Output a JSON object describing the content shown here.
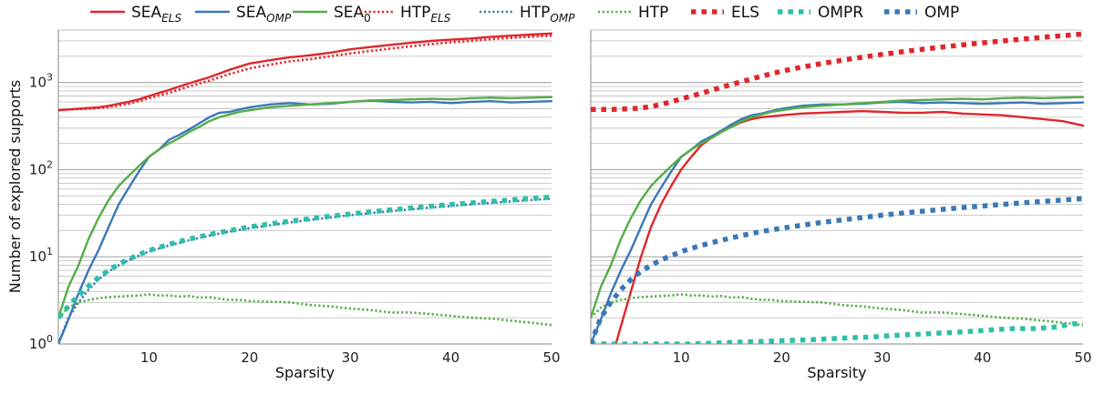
{
  "chart_data": [
    {
      "type": "line",
      "panel": "left",
      "xlabel": "Sparsity",
      "ylabel": "Number of explored supports",
      "xlim": [
        1,
        50
      ],
      "ylim": [
        1,
        4000
      ],
      "yscale": "log",
      "xticks": [
        10,
        20,
        30,
        40,
        50
      ],
      "grid": "horizontal-minor-and-major",
      "legend": "top (shared, outside)",
      "series": [
        {
          "key": "sea_els",
          "x": [
            1,
            2,
            3,
            4,
            5,
            6,
            7,
            8,
            9,
            10,
            12,
            14,
            16,
            18,
            20,
            22,
            24,
            26,
            28,
            30,
            32,
            34,
            36,
            38,
            40,
            42,
            44,
            46,
            48,
            50
          ],
          "values": [
            480,
            490,
            500,
            510,
            520,
            540,
            570,
            600,
            640,
            700,
            820,
            980,
            1150,
            1400,
            1650,
            1800,
            1950,
            2050,
            2200,
            2400,
            2550,
            2700,
            2850,
            3000,
            3100,
            3200,
            3350,
            3450,
            3550,
            3650
          ]
        },
        {
          "key": "sea_omp",
          "x": [
            1,
            2,
            3,
            4,
            5,
            6,
            7,
            8,
            9,
            10,
            11,
            12,
            13,
            14,
            15,
            16,
            17,
            18,
            19,
            20,
            22,
            24,
            26,
            28,
            30,
            32,
            34,
            36,
            38,
            40,
            42,
            44,
            46,
            48,
            50
          ],
          "values": [
            1.0,
            1.9,
            3.8,
            7,
            12,
            22,
            40,
            62,
            95,
            140,
            170,
            220,
            250,
            290,
            340,
            400,
            450,
            460,
            490,
            520,
            560,
            580,
            560,
            570,
            600,
            620,
            600,
            590,
            600,
            580,
            600,
            610,
            590,
            600,
            610
          ]
        },
        {
          "key": "sea_0",
          "x": [
            1,
            2,
            3,
            4,
            5,
            6,
            7,
            8,
            9,
            10,
            11,
            12,
            13,
            14,
            15,
            16,
            17,
            18,
            19,
            20,
            22,
            24,
            26,
            28,
            30,
            32,
            34,
            36,
            38,
            40,
            42,
            44,
            46,
            48,
            50
          ],
          "values": [
            2,
            4.5,
            8,
            16,
            28,
            45,
            65,
            85,
            110,
            140,
            170,
            200,
            230,
            270,
            310,
            360,
            400,
            430,
            460,
            480,
            520,
            540,
            560,
            580,
            600,
            620,
            630,
            640,
            650,
            640,
            660,
            670,
            660,
            670,
            680
          ]
        },
        {
          "key": "htp_els",
          "x": [
            1,
            2,
            3,
            4,
            5,
            6,
            7,
            8,
            9,
            10,
            12,
            14,
            16,
            18,
            20,
            22,
            24,
            26,
            28,
            30,
            32,
            34,
            36,
            38,
            40,
            42,
            44,
            46,
            48,
            50
          ],
          "values": [
            480,
            490,
            495,
            500,
            510,
            525,
            545,
            570,
            610,
            660,
            760,
            900,
            1050,
            1250,
            1450,
            1600,
            1750,
            1850,
            2000,
            2150,
            2300,
            2450,
            2600,
            2750,
            2900,
            3000,
            3150,
            3250,
            3350,
            3450
          ]
        },
        {
          "key": "htp_omp",
          "x": [
            1,
            2,
            3,
            4,
            5,
            6,
            7,
            8,
            9,
            10,
            12,
            14,
            16,
            18,
            20,
            22,
            24,
            26,
            28,
            30,
            32,
            34,
            36,
            38,
            40,
            42,
            44,
            46,
            48,
            50
          ],
          "values": [
            1.0,
            2.0,
            3.0,
            4.2,
            5.5,
            6.8,
            8.0,
            9.2,
            10.3,
            11.5,
            13.5,
            15.5,
            17.5,
            19.5,
            21.3,
            23,
            24.8,
            26.5,
            28.2,
            30,
            31.7,
            33.4,
            35,
            36.7,
            38.3,
            40,
            41.6,
            43.2,
            44.8,
            46.5
          ]
        },
        {
          "key": "htp",
          "x": [
            1,
            2,
            3,
            4,
            5,
            6,
            7,
            8,
            9,
            10,
            11,
            12,
            13,
            14,
            15,
            16,
            17,
            18,
            19,
            20,
            22,
            24,
            26,
            28,
            30,
            32,
            34,
            36,
            38,
            40,
            42,
            44,
            46,
            48,
            50
          ],
          "values": [
            2.0,
            2.6,
            3.0,
            3.2,
            3.35,
            3.45,
            3.5,
            3.55,
            3.6,
            3.7,
            3.6,
            3.6,
            3.5,
            3.55,
            3.4,
            3.45,
            3.3,
            3.2,
            3.2,
            3.1,
            3.05,
            3.0,
            2.8,
            2.7,
            2.55,
            2.45,
            2.3,
            2.3,
            2.2,
            2.1,
            2.0,
            1.95,
            1.85,
            1.75,
            1.65
          ]
        },
        {
          "key": "ompr",
          "x": [
            1,
            2,
            3,
            4,
            5,
            6,
            7,
            8,
            9,
            10,
            12,
            14,
            16,
            18,
            20,
            22,
            24,
            26,
            28,
            30,
            32,
            34,
            36,
            38,
            40,
            42,
            44,
            46,
            48,
            50
          ],
          "values": [
            2.0,
            2.7,
            3.6,
            4.6,
            5.8,
            7.0,
            8.2,
            9.4,
            10.6,
            11.8,
            13.9,
            16,
            18,
            20,
            22,
            23.8,
            25.6,
            27.4,
            29.2,
            31,
            32.8,
            34.5,
            36.3,
            38,
            39.8,
            41.5,
            43.3,
            45,
            46.8,
            48.5
          ]
        }
      ]
    },
    {
      "type": "line",
      "panel": "right",
      "xlabel": "Sparsity",
      "xlim": [
        1,
        50
      ],
      "ylim": [
        1,
        4000
      ],
      "yscale": "log",
      "xticks": [
        10,
        20,
        30,
        40,
        50
      ],
      "grid": "horizontal-minor-and-major",
      "series": [
        {
          "key": "sea_els",
          "x": [
            3.5,
            4,
            5,
            6,
            7,
            8,
            9,
            10,
            11,
            12,
            13,
            14,
            15,
            16,
            17,
            18,
            19,
            20,
            22,
            24,
            26,
            28,
            30,
            32,
            34,
            36,
            38,
            40,
            42,
            44,
            46,
            48,
            50
          ],
          "values": [
            1.0,
            1.6,
            4,
            10,
            22,
            40,
            65,
            100,
            140,
            190,
            230,
            270,
            310,
            350,
            380,
            400,
            410,
            420,
            440,
            450,
            460,
            470,
            460,
            450,
            450,
            460,
            440,
            430,
            420,
            400,
            380,
            360,
            320
          ]
        },
        {
          "key": "sea_omp",
          "x": [
            1,
            2,
            3,
            4,
            5,
            6,
            7,
            8,
            9,
            10,
            11,
            12,
            13,
            14,
            15,
            16,
            17,
            18,
            19,
            20,
            22,
            24,
            26,
            28,
            30,
            32,
            34,
            36,
            38,
            40,
            42,
            44,
            46,
            48,
            50
          ],
          "values": [
            1.0,
            1.9,
            3.8,
            7,
            12,
            22,
            40,
            62,
            95,
            140,
            170,
            210,
            240,
            280,
            330,
            380,
            420,
            440,
            470,
            500,
            540,
            560,
            560,
            570,
            590,
            600,
            580,
            590,
            580,
            570,
            580,
            590,
            570,
            580,
            590
          ]
        },
        {
          "key": "sea_0",
          "x": [
            1,
            2,
            3,
            4,
            5,
            6,
            7,
            8,
            9,
            10,
            11,
            12,
            13,
            14,
            15,
            16,
            17,
            18,
            19,
            20,
            22,
            24,
            26,
            28,
            30,
            32,
            34,
            36,
            38,
            40,
            42,
            44,
            46,
            48,
            50
          ],
          "values": [
            2,
            4.5,
            8,
            16,
            28,
            45,
            65,
            85,
            110,
            140,
            170,
            200,
            230,
            270,
            310,
            360,
            400,
            430,
            460,
            480,
            520,
            540,
            560,
            580,
            600,
            620,
            630,
            640,
            650,
            640,
            660,
            670,
            660,
            670,
            680
          ]
        },
        {
          "key": "htp",
          "x": [
            1,
            2,
            3,
            4,
            5,
            6,
            7,
            8,
            9,
            10,
            11,
            12,
            13,
            14,
            15,
            16,
            17,
            18,
            19,
            20,
            22,
            24,
            26,
            28,
            30,
            32,
            34,
            36,
            38,
            40,
            42,
            44,
            46,
            48,
            50
          ],
          "values": [
            2.0,
            2.6,
            3.0,
            3.2,
            3.35,
            3.45,
            3.5,
            3.55,
            3.6,
            3.7,
            3.6,
            3.6,
            3.5,
            3.55,
            3.4,
            3.45,
            3.3,
            3.2,
            3.2,
            3.1,
            3.05,
            3.0,
            2.8,
            2.7,
            2.55,
            2.45,
            2.3,
            2.3,
            2.2,
            2.1,
            2.0,
            1.95,
            1.85,
            1.75,
            1.65
          ]
        },
        {
          "key": "els",
          "x": [
            1,
            2,
            3,
            4,
            5,
            6,
            7,
            8,
            9,
            10,
            12,
            14,
            16,
            18,
            20,
            22,
            24,
            26,
            28,
            30,
            32,
            34,
            36,
            38,
            40,
            42,
            44,
            46,
            48,
            50
          ],
          "values": [
            490,
            490,
            490,
            495,
            500,
            510,
            530,
            560,
            600,
            650,
            750,
            880,
            1020,
            1180,
            1350,
            1500,
            1650,
            1800,
            1950,
            2100,
            2250,
            2400,
            2550,
            2700,
            2850,
            3000,
            3150,
            3300,
            3450,
            3600
          ]
        },
        {
          "key": "ompr",
          "x": [
            1,
            3,
            5,
            7,
            9,
            11,
            13,
            15,
            17,
            19,
            21,
            23,
            25,
            27,
            29,
            31,
            33,
            35,
            37,
            39,
            41,
            43,
            45,
            47,
            49,
            50
          ],
          "values": [
            1.0,
            1.0,
            1.0,
            1.0,
            1.0,
            1.0,
            1.02,
            1.04,
            1.06,
            1.08,
            1.1,
            1.12,
            1.15,
            1.18,
            1.2,
            1.25,
            1.28,
            1.32,
            1.35,
            1.4,
            1.45,
            1.5,
            1.5,
            1.55,
            1.7,
            1.7
          ]
        },
        {
          "key": "omp",
          "x": [
            1,
            2,
            3,
            4,
            5,
            6,
            7,
            8,
            9,
            10,
            12,
            14,
            16,
            18,
            20,
            22,
            24,
            26,
            28,
            30,
            32,
            34,
            36,
            38,
            40,
            42,
            44,
            46,
            48,
            50
          ],
          "values": [
            1.0,
            2.0,
            3.0,
            4.2,
            5.5,
            6.8,
            8.0,
            9.2,
            10.3,
            11.5,
            13.5,
            15.5,
            17.5,
            19.5,
            21.3,
            23,
            24.8,
            26.5,
            28.2,
            30,
            31.7,
            33.4,
            35,
            36.7,
            38.3,
            40,
            41.6,
            43.2,
            44.8,
            46.5
          ]
        }
      ]
    }
  ],
  "styles": {
    "sea_els": {
      "color": "#e0262c",
      "dash": "solid"
    },
    "sea_omp": {
      "color": "#3a78b8",
      "dash": "solid"
    },
    "sea_0": {
      "color": "#55ad48",
      "dash": "solid"
    },
    "htp_els": {
      "color": "#e0262c",
      "dash": "dotted"
    },
    "htp_omp": {
      "color": "#3a78b8",
      "dash": "dotted"
    },
    "htp": {
      "color": "#55ad48",
      "dash": "dotted"
    },
    "els": {
      "color": "#e0262c",
      "dash": "square"
    },
    "ompr": {
      "color": "#2dbfa8",
      "dash": "square"
    },
    "omp": {
      "color": "#3a78b8",
      "dash": "square"
    }
  },
  "legend": [
    {
      "key": "sea_els",
      "base": "SEA",
      "sub": "ELS"
    },
    {
      "key": "sea_omp",
      "base": "SEA",
      "sub": "OMP"
    },
    {
      "key": "sea_0",
      "base": "SEA",
      "sub": "0"
    },
    {
      "key": "htp_els",
      "base": "HTP",
      "sub": "ELS"
    },
    {
      "key": "htp_omp",
      "base": "HTP",
      "sub": "OMP"
    },
    {
      "key": "htp",
      "base": "HTP",
      "sub": ""
    },
    {
      "key": "els",
      "base": "ELS",
      "sub": ""
    },
    {
      "key": "ompr",
      "base": "OMPR",
      "sub": ""
    },
    {
      "key": "omp",
      "base": "OMP",
      "sub": ""
    }
  ],
  "yticks": [
    {
      "base": "10",
      "exp": "0"
    },
    {
      "base": "10",
      "exp": "1"
    },
    {
      "base": "10",
      "exp": "2"
    },
    {
      "base": "10",
      "exp": "3"
    }
  ]
}
